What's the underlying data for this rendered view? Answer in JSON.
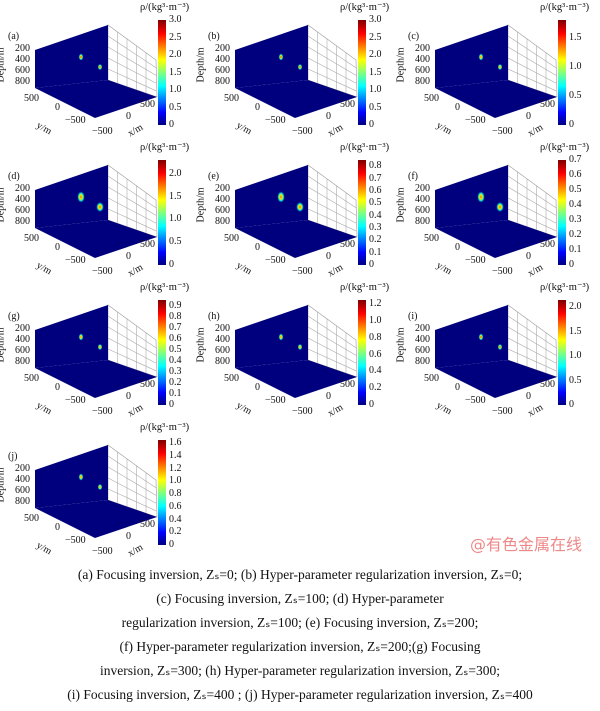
{
  "common": {
    "cbar_title": "ρ/(kg³·m⁻³)",
    "depth_label": "Depth/m",
    "depth_ticks": [
      "200",
      "400",
      "600",
      "800"
    ],
    "y_label": "y/m",
    "y_ticks": [
      "500",
      "0",
      "−500"
    ],
    "x_label": "x/m",
    "x_ticks": [
      "−500",
      "0",
      "500"
    ],
    "colormap": "jet",
    "background_color": "#00007f"
  },
  "panels": [
    {
      "label": "(a)",
      "cbar_ticks": [
        "0",
        "0.5",
        "1.0",
        "1.5",
        "2.0",
        "2.5",
        "3.0"
      ],
      "cbar_max": 3.0
    },
    {
      "label": "(b)",
      "cbar_ticks": [
        "0",
        "0.5",
        "1.0",
        "1.5",
        "2.0",
        "2.5",
        "3.0"
      ],
      "cbar_max": 3.0
    },
    {
      "label": "(c)",
      "cbar_ticks": [
        "0",
        "0.5",
        "1.0",
        "1.5"
      ],
      "cbar_max": 1.8
    },
    {
      "label": "(d)",
      "cbar_ticks": [
        "0",
        "0.5",
        "1.0",
        "1.5",
        "2.0"
      ],
      "cbar_max": 2.3
    },
    {
      "label": "(e)",
      "cbar_ticks": [
        "0",
        "0.1",
        "0.2",
        "0.3",
        "0.4",
        "0.5",
        "0.6",
        "0.7",
        "0.8"
      ],
      "cbar_max": 0.85
    },
    {
      "label": "(f)",
      "cbar_ticks": [
        "0",
        "0.1",
        "0.2",
        "0.3",
        "0.4",
        "0.5",
        "0.6",
        "0.7"
      ],
      "cbar_max": 0.7
    },
    {
      "label": "(g)",
      "cbar_ticks": [
        "0",
        "0.1",
        "0.2",
        "0.3",
        "0.4",
        "0.5",
        "0.6",
        "0.7",
        "0.8",
        "0.9"
      ],
      "cbar_max": 0.95
    },
    {
      "label": "(h)",
      "cbar_ticks": [
        "0",
        "0.2",
        "0.4",
        "0.6",
        "0.8",
        "1.0",
        "1.2"
      ],
      "cbar_max": 1.25
    },
    {
      "label": "(i)",
      "cbar_ticks": [
        "0",
        "0.5",
        "1.0",
        "1.5",
        "2.0"
      ],
      "cbar_max": 2.15
    },
    {
      "label": "(j)",
      "cbar_ticks": [
        "0",
        "0.2",
        "0.4",
        "0.6",
        "0.8",
        "1.0",
        "1.2",
        "1.4",
        "1.6"
      ],
      "cbar_max": 1.65
    }
  ],
  "caption": [
    "(a) Focusing inversion, Zₛ=0; (b) Hyper-parameter regularization inversion, Zₛ=0;",
    "(c) Focusing inversion, Zₛ=100; (d) Hyper-parameter",
    "regularization inversion, Zₛ=100; (e) Focusing inversion, Zₛ=200;",
    "(f) Hyper-parameter regularization inversion, Zₛ=200;(g) Focusing",
    "inversion, Zₛ=300; (h) Hyper-parameter regularization inversion, Zₛ=300;",
    "(i) Focusing inversion, Zₛ=400 ; (j) Hyper-parameter regularization inversion, Zₛ=400"
  ],
  "watermark": "@有色金属在线"
}
